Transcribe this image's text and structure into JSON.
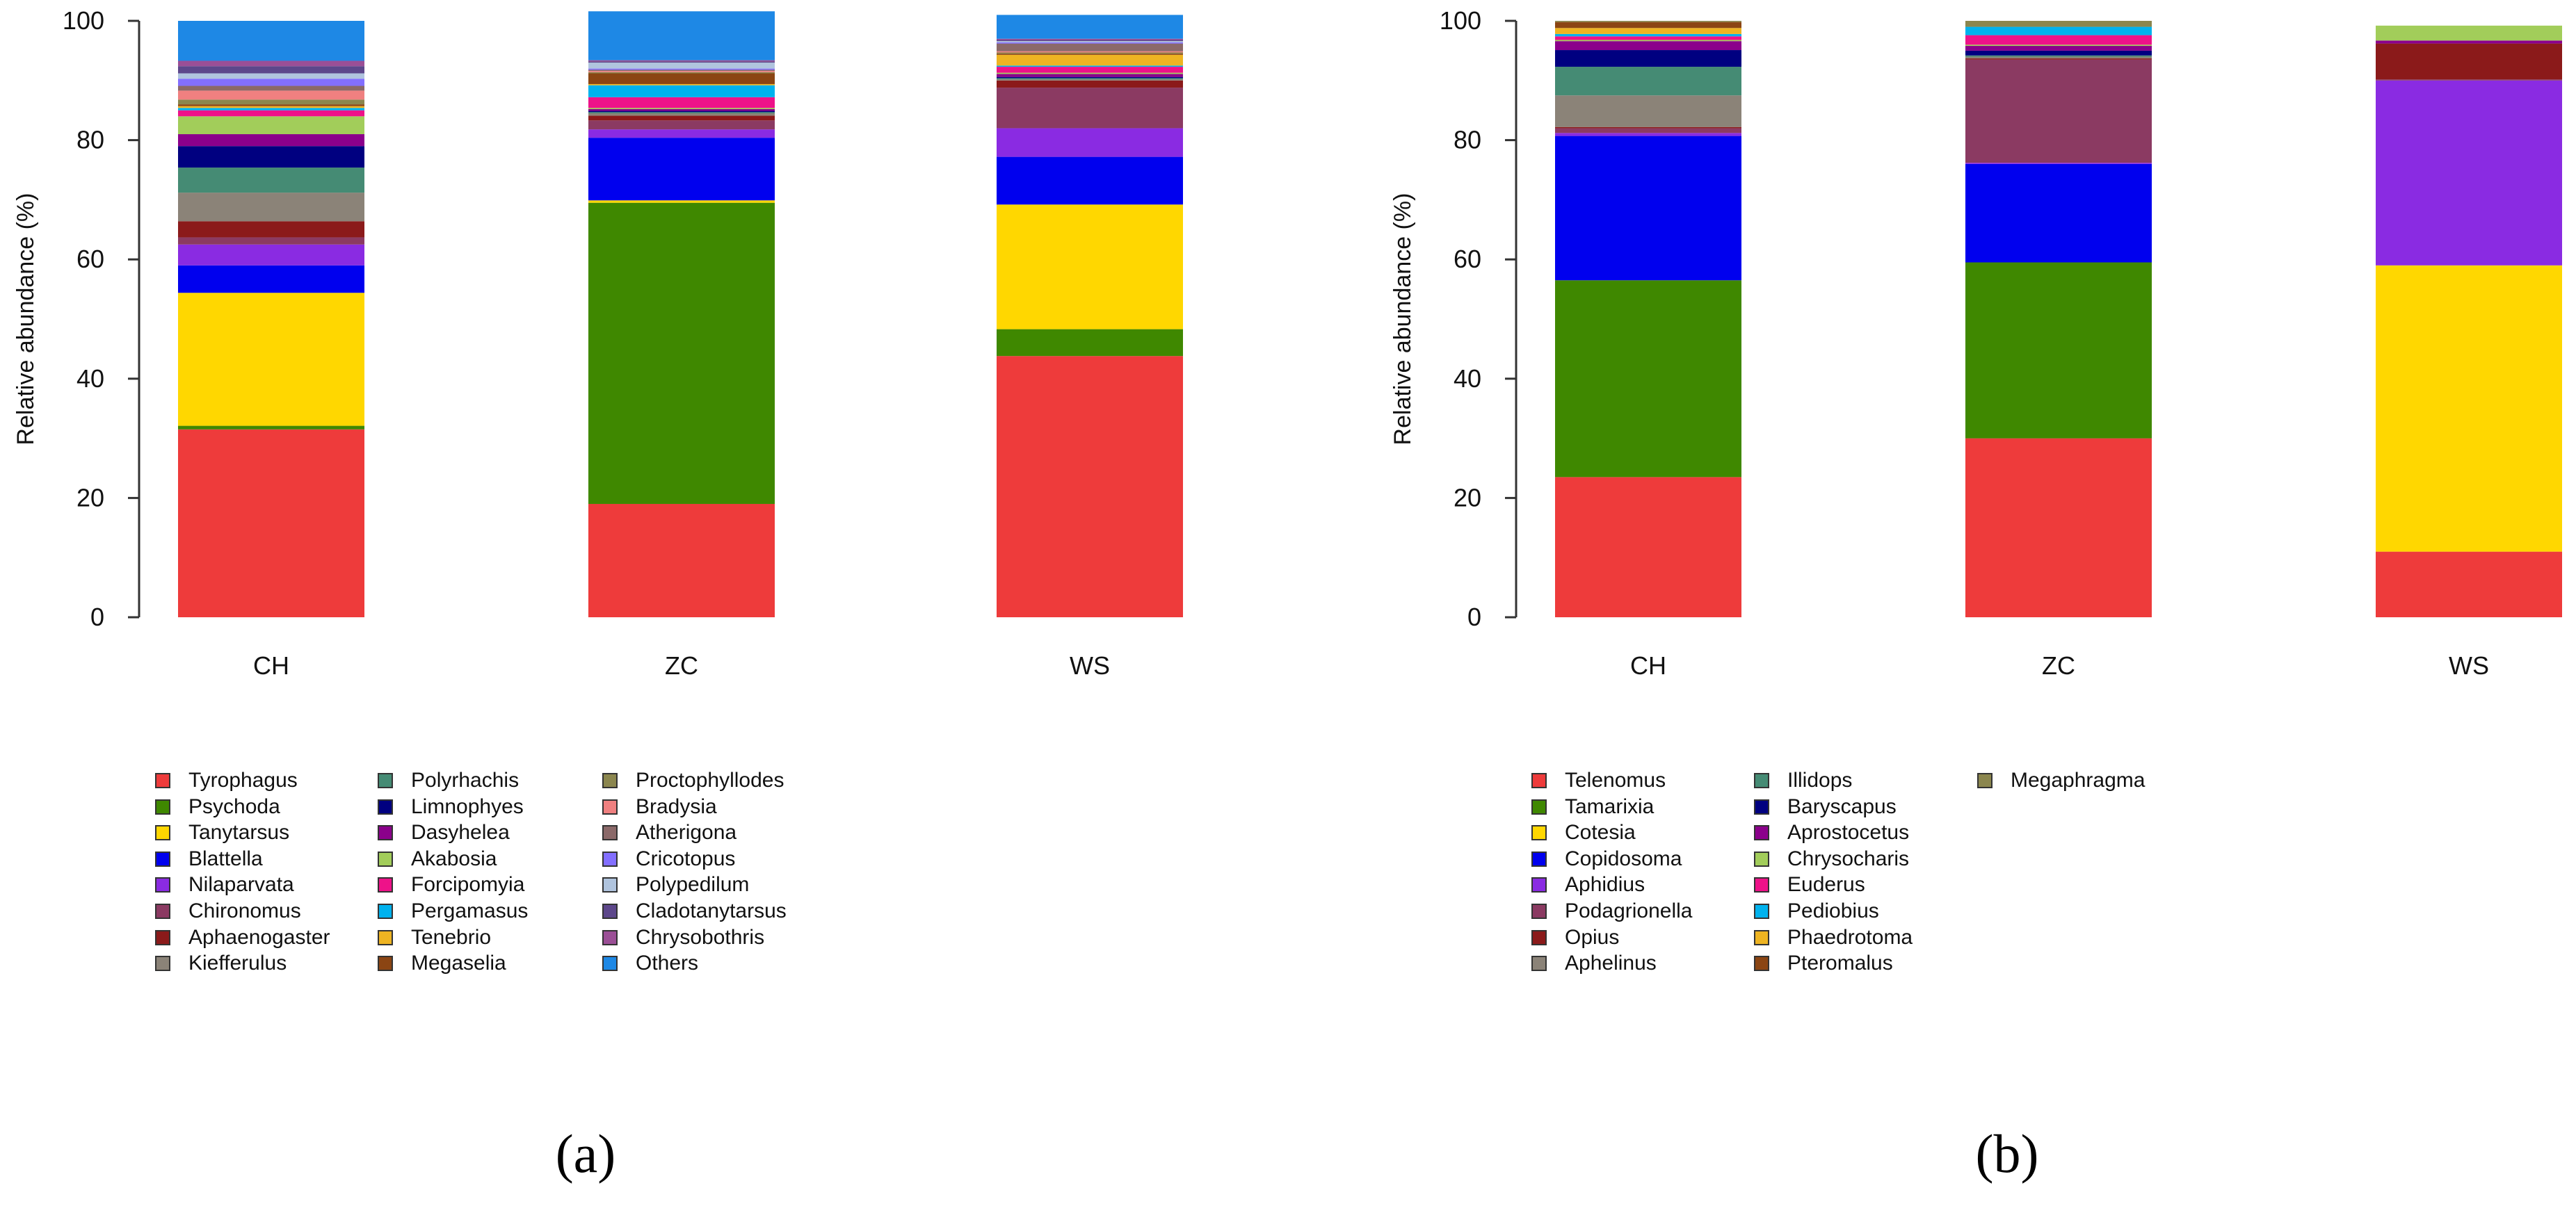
{
  "chart_data": [
    {
      "type": "bar",
      "stacked": true,
      "panel_label": "(a)",
      "title": "",
      "xlabel": "",
      "ylabel": "Relative abundance (%)",
      "ylim": [
        0,
        100
      ],
      "yticks": [
        "0",
        "20",
        "40",
        "60",
        "80",
        "100"
      ],
      "categories": [
        "CH",
        "ZC",
        "WS"
      ],
      "series": [
        {
          "name": "Tyrophagus",
          "color": "#ee3b3b",
          "values": [
            31.5,
            19.0,
            43.8
          ]
        },
        {
          "name": "Psychoda",
          "color": "#3f8800",
          "values": [
            0.6,
            50.5,
            4.5
          ]
        },
        {
          "name": "Tanytarsus",
          "color": "#ffd700",
          "values": [
            22.3,
            0.4,
            20.9
          ]
        },
        {
          "name": "Blattella",
          "color": "#0000ee",
          "values": [
            4.6,
            10.5,
            8.0
          ]
        },
        {
          "name": "Nilaparvata",
          "color": "#8a2be2",
          "values": [
            3.5,
            1.4,
            4.8
          ]
        },
        {
          "name": "Chironomus",
          "color": "#8b3a62",
          "values": [
            1.2,
            1.5,
            6.8
          ]
        },
        {
          "name": "Aphaenogaster",
          "color": "#8b1a1a",
          "values": [
            2.7,
            0.8,
            1.2
          ]
        },
        {
          "name": "Kiefferulus",
          "color": "#8b8378",
          "values": [
            4.8,
            0.4,
            0.2
          ]
        },
        {
          "name": "Polyrhachis",
          "color": "#458b74",
          "values": [
            4.2,
            0.2,
            0.2
          ]
        },
        {
          "name": "Limnophyes",
          "color": "#000080",
          "values": [
            3.6,
            0.2,
            0.2
          ]
        },
        {
          "name": "Dasyhelea",
          "color": "#8b008b",
          "values": [
            2.0,
            0.3,
            0.5
          ]
        },
        {
          "name": "Akabosia",
          "color": "#a2cd5a",
          "values": [
            3.0,
            0.2,
            0.2
          ]
        },
        {
          "name": "Forcipomyia",
          "color": "#ee1289",
          "values": [
            1.0,
            1.8,
            1.0
          ]
        },
        {
          "name": "Pergamasus",
          "color": "#00b2ee",
          "values": [
            0.4,
            2.0,
            0.2
          ]
        },
        {
          "name": "Tenebrio",
          "color": "#eeb422",
          "values": [
            0.3,
            0.2,
            1.8
          ]
        },
        {
          "name": "Megaselia",
          "color": "#8b4513",
          "values": [
            0.3,
            1.8,
            0.2
          ]
        },
        {
          "name": "Proctophyllodes",
          "color": "#8b864e",
          "values": [
            0.8,
            0.2,
            0.2
          ]
        },
        {
          "name": "Bradysia",
          "color": "#f08080",
          "values": [
            1.5,
            0.2,
            0.2
          ]
        },
        {
          "name": "Atherigona",
          "color": "#8b6969",
          "values": [
            0.8,
            0.2,
            1.3
          ]
        },
        {
          "name": "Cricotopus",
          "color": "#836fff",
          "values": [
            1.2,
            0.2,
            0.2
          ]
        },
        {
          "name": "Polypedilum",
          "color": "#b0c4de",
          "values": [
            0.9,
            1.0,
            0.2
          ]
        },
        {
          "name": "Cladotanytarsus",
          "color": "#5d478b",
          "values": [
            1.2,
            0.2,
            0.2
          ]
        },
        {
          "name": "Chrysobothris",
          "color": "#9b4f96",
          "values": [
            0.9,
            0.2,
            0.2
          ]
        },
        {
          "name": "Others",
          "color": "#1e88e5",
          "values": [
            6.7,
            8.2,
            4.0
          ]
        }
      ]
    },
    {
      "type": "bar",
      "stacked": true,
      "panel_label": "(b)",
      "title": "",
      "xlabel": "",
      "ylabel": "Relative abundance (%)",
      "ylim": [
        0,
        100
      ],
      "yticks": [
        "0",
        "20",
        "40",
        "60",
        "80",
        "100"
      ],
      "categories": [
        "CH",
        "ZC",
        "WS"
      ],
      "series": [
        {
          "name": "Telenomus",
          "color": "#ee3b3b",
          "values": [
            23.5,
            30.0,
            11.0
          ]
        },
        {
          "name": "Tamarixia",
          "color": "#3f8800",
          "values": [
            33.0,
            29.5,
            0.0
          ]
        },
        {
          "name": "Cotesia",
          "color": "#ffd700",
          "values": [
            0.0,
            0.0,
            48.0
          ]
        },
        {
          "name": "Copidosoma",
          "color": "#0000ee",
          "values": [
            24.2,
            16.5,
            0.0
          ]
        },
        {
          "name": "Aphidius",
          "color": "#8a2be2",
          "values": [
            0.5,
            0.2,
            31.0
          ]
        },
        {
          "name": "Podagrionella",
          "color": "#8b3a62",
          "values": [
            0.8,
            17.3,
            0.2
          ]
        },
        {
          "name": "Opius",
          "color": "#8b1a1a",
          "values": [
            0.2,
            0.2,
            6.0
          ]
        },
        {
          "name": "Aphelinus",
          "color": "#8b8378",
          "values": [
            5.3,
            0.3,
            0.0
          ]
        },
        {
          "name": "Illidops",
          "color": "#458b74",
          "values": [
            4.8,
            0.2,
            0.0
          ]
        },
        {
          "name": "Baryscapus",
          "color": "#000080",
          "values": [
            2.8,
            0.8,
            0.0
          ]
        },
        {
          "name": "Aprostocetus",
          "color": "#8b008b",
          "values": [
            1.5,
            0.8,
            0.5
          ]
        },
        {
          "name": "Chrysocharis",
          "color": "#a2cd5a",
          "values": [
            0.2,
            0.2,
            2.5
          ]
        },
        {
          "name": "Euderus",
          "color": "#ee1289",
          "values": [
            0.6,
            1.6,
            0.0
          ]
        },
        {
          "name": "Pediobius",
          "color": "#00b2ee",
          "values": [
            0.4,
            1.4,
            0.0
          ]
        },
        {
          "name": "Phaedrotoma",
          "color": "#eeb422",
          "values": [
            1.0,
            0.0,
            0.0
          ]
        },
        {
          "name": "Pteromalus",
          "color": "#8b4513",
          "values": [
            1.0,
            0.0,
            0.0
          ]
        },
        {
          "name": "Megaphragma",
          "color": "#8b864e",
          "values": [
            0.2,
            1.0,
            0.0
          ]
        }
      ]
    }
  ]
}
